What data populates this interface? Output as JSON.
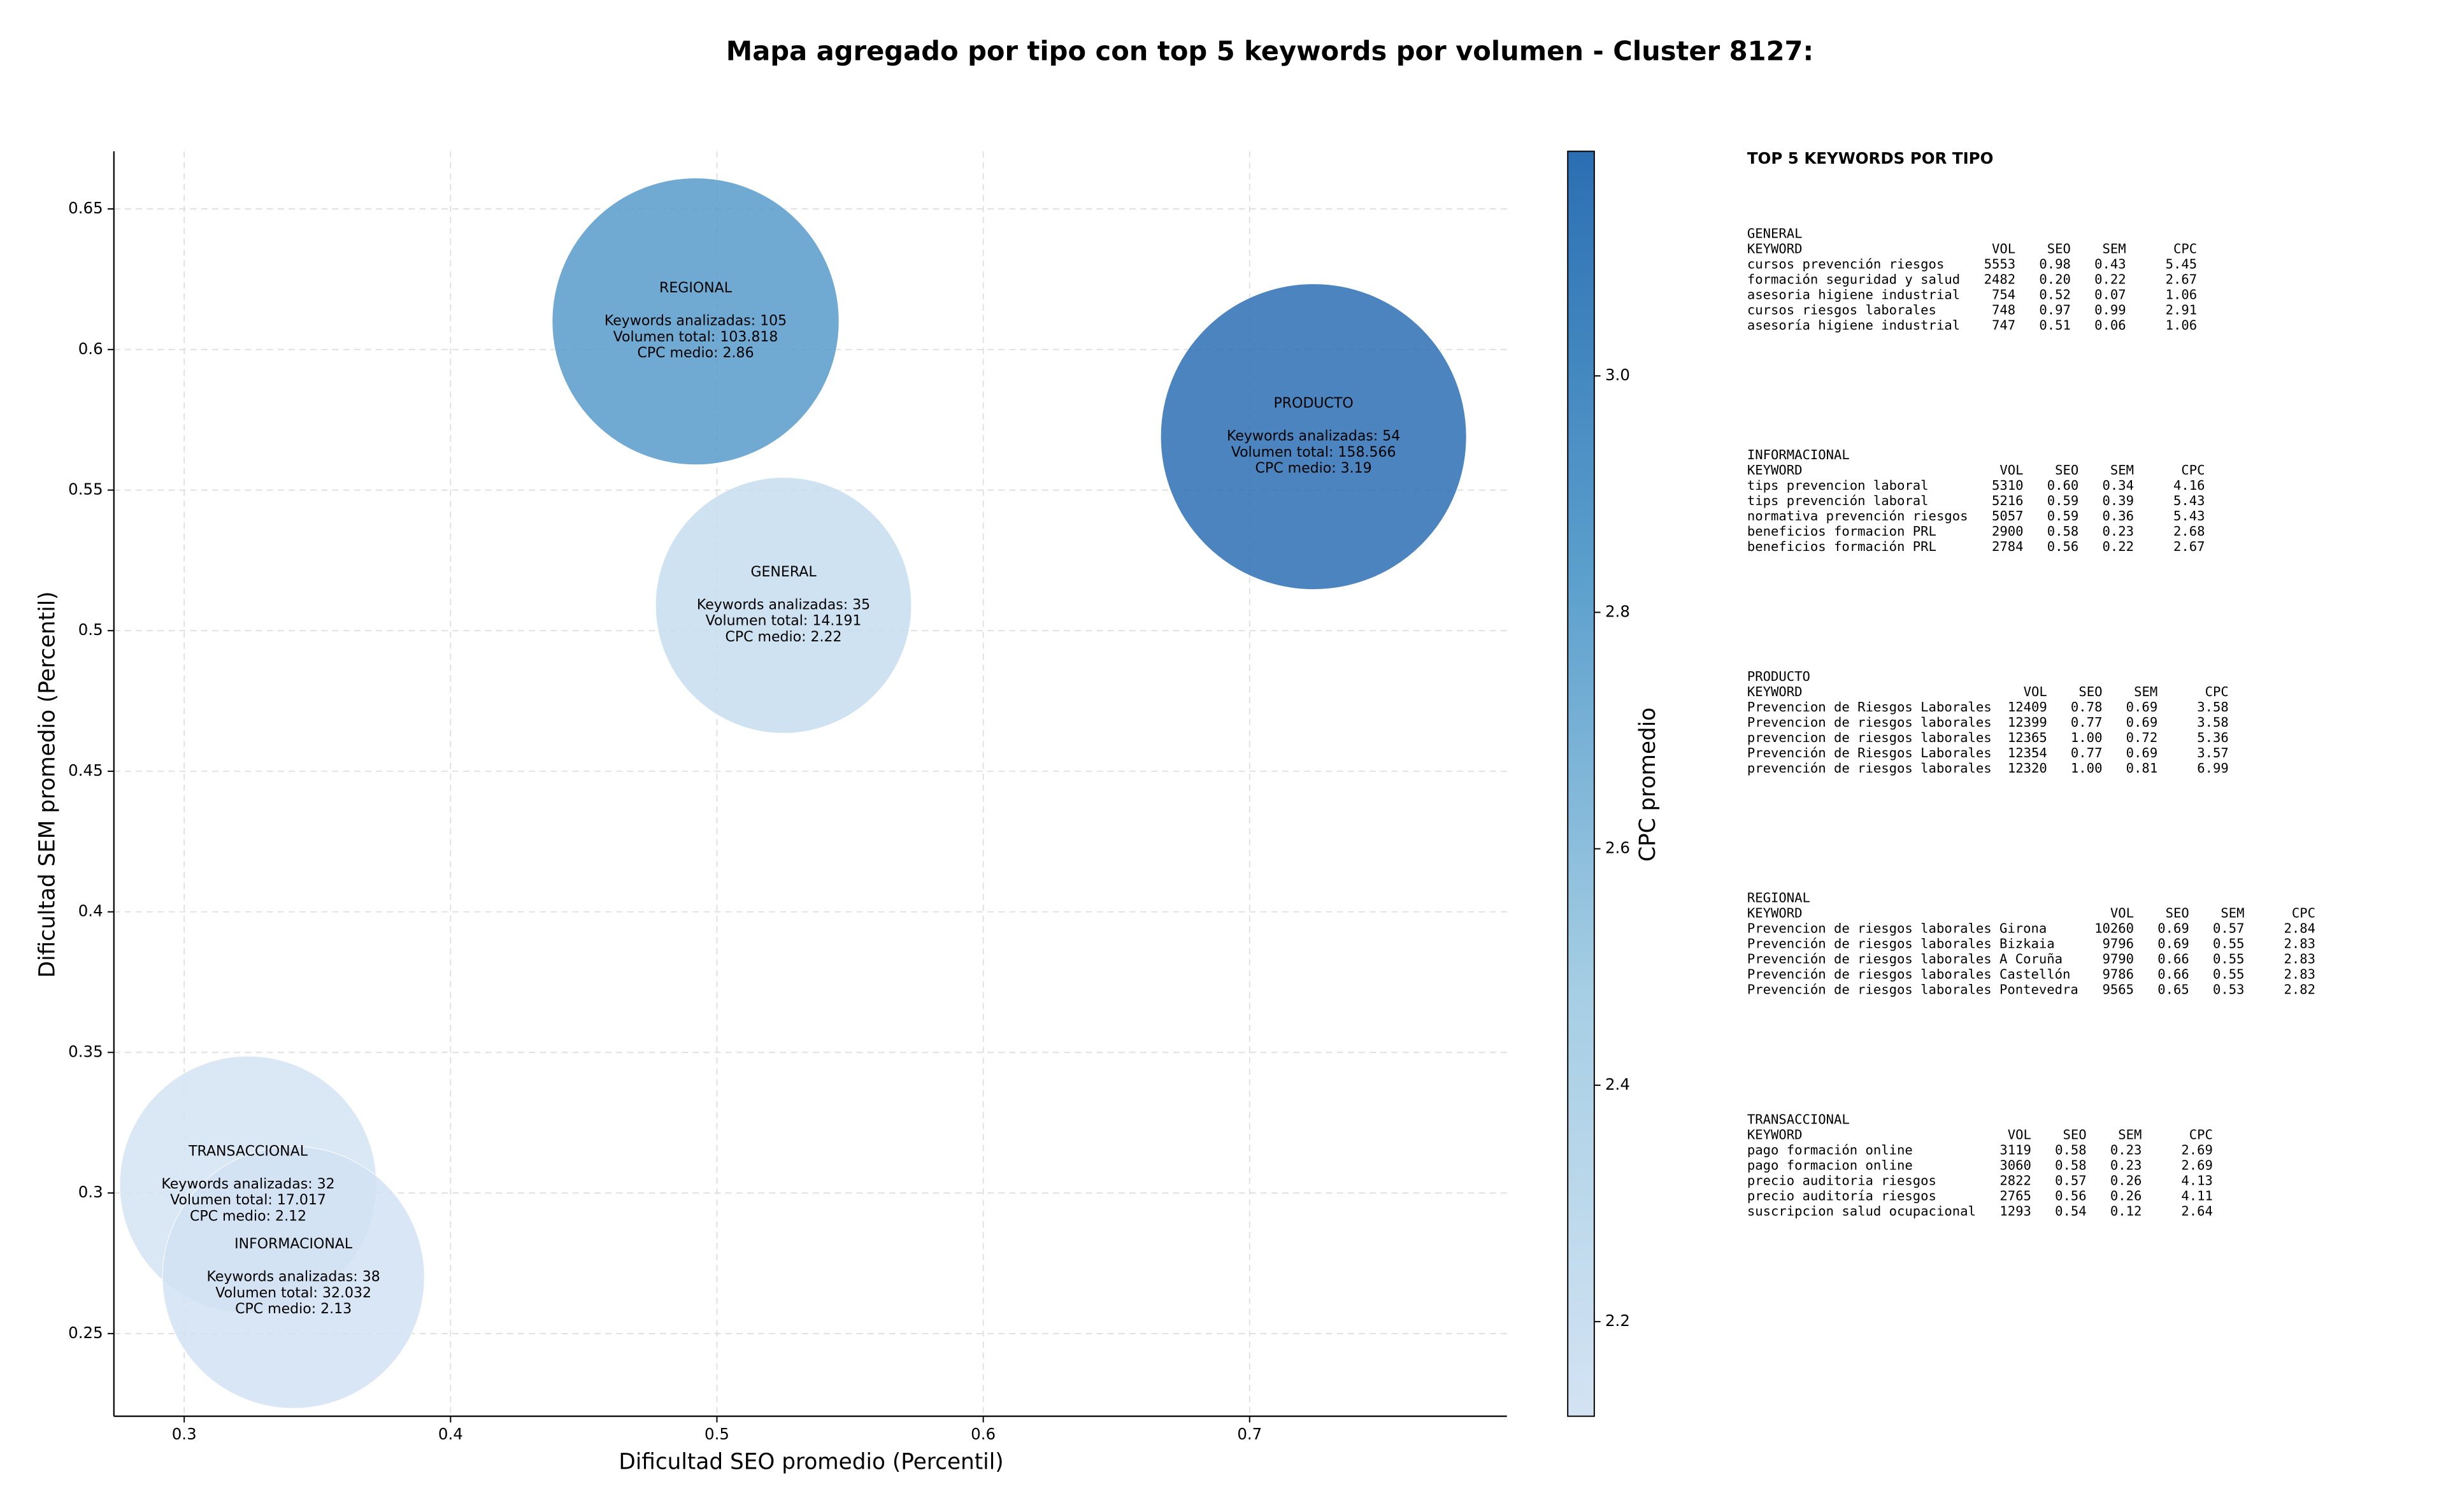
{
  "chart_data": {
    "type": "bubble",
    "title": "Mapa agregado por tipo con top 5 keywords por volumen - Cluster 8127:",
    "x_label": "Dificultad SEO promedio (Percentil)",
    "y_label": "Dificultad SEM promedio (Percentil)",
    "xlim": [
      0.2736,
      0.7966
    ],
    "xticks": [
      0.3,
      0.4,
      0.5,
      0.6,
      0.7
    ],
    "ylim": [
      0.2206,
      0.6705
    ],
    "yticks": [
      0.25,
      0.3,
      0.35,
      0.4,
      0.45,
      0.5,
      0.55,
      0.6,
      0.65
    ],
    "grid": true,
    "colorbar": {
      "label": "CPC promedio",
      "lim": [
        2.12,
        3.19
      ],
      "ticks": [
        2.2,
        2.4,
        2.6,
        2.8,
        {
          "value": 3,
          "label": "3.0"
        }
      ],
      "colormap": [
        "#d3e3f3",
        "#a6cee4",
        "#5b9fcd",
        "#2b6fb3"
      ]
    },
    "points": [
      {
        "name": "REGIONAL",
        "x": 0.492,
        "y": 0.61,
        "volume": 103818,
        "cpc": 2.86,
        "text": [
          "Keywords analizadas: 105",
          "Volumen total: 103.818",
          "CPC medio: 2.86"
        ]
      },
      {
        "name": "PRODUCTO",
        "x": 0.724,
        "y": 0.569,
        "volume": 158566,
        "cpc": 3.19,
        "text": [
          "Keywords analizadas: 54",
          "Volumen total: 158.566",
          "CPC medio: 3.19"
        ]
      },
      {
        "name": "GENERAL",
        "x": 0.525,
        "y": 0.509,
        "volume": 14191,
        "cpc": 2.22,
        "text": [
          "Keywords analizadas: 35",
          "Volumen total: 14.191",
          "CPC medio: 2.22"
        ]
      },
      {
        "name": "TRANSACCIONAL",
        "x": 0.324,
        "y": 0.303,
        "volume": 17017,
        "cpc": 2.12,
        "text": [
          "Keywords analizadas: 32",
          "Volumen total: 17.017",
          "CPC medio: 2.12"
        ]
      },
      {
        "name": "INFORMACIONAL",
        "x": 0.341,
        "y": 0.27,
        "volume": 32032,
        "cpc": 2.13,
        "text": [
          "Keywords analizadas: 38",
          "Volumen total: 32.032",
          "CPC medio: 2.13"
        ]
      }
    ]
  },
  "keyword_panel": {
    "title": "TOP 5 KEYWORDS POR TIPO",
    "columns": [
      "KEYWORD",
      "VOL",
      "SEO",
      "SEM",
      "CPC"
    ],
    "groups": [
      {
        "name": "GENERAL",
        "rows": [
          [
            "cursos prevención riesgos",
            "5553",
            "0.98",
            "0.43",
            "5.45"
          ],
          [
            "formación seguridad y salud",
            "2482",
            "0.20",
            "0.22",
            "2.67"
          ],
          [
            "asesoria higiene industrial",
            "754",
            "0.52",
            "0.07",
            "1.06"
          ],
          [
            "cursos riesgos laborales",
            "748",
            "0.97",
            "0.99",
            "2.91"
          ],
          [
            "asesoría higiene industrial",
            "747",
            "0.51",
            "0.06",
            "1.06"
          ]
        ]
      },
      {
        "name": "INFORMACIONAL",
        "rows": [
          [
            "tips prevencion laboral",
            "5310",
            "0.60",
            "0.34",
            "4.16"
          ],
          [
            "tips prevención laboral",
            "5216",
            "0.59",
            "0.39",
            "5.43"
          ],
          [
            "normativa prevención riesgos",
            "5057",
            "0.59",
            "0.36",
            "5.43"
          ],
          [
            "beneficios formacion PRL",
            "2900",
            "0.58",
            "0.23",
            "2.68"
          ],
          [
            "beneficios formación PRL",
            "2784",
            "0.56",
            "0.22",
            "2.67"
          ]
        ]
      },
      {
        "name": "PRODUCTO",
        "rows": [
          [
            "Prevencion de Riesgos Laborales",
            "12409",
            "0.78",
            "0.69",
            "3.58"
          ],
          [
            "Prevencion de riesgos laborales",
            "12399",
            "0.77",
            "0.69",
            "3.58"
          ],
          [
            "prevencion de riesgos laborales",
            "12365",
            "1.00",
            "0.72",
            "5.36"
          ],
          [
            "Prevención de Riesgos Laborales",
            "12354",
            "0.77",
            "0.69",
            "3.57"
          ],
          [
            "prevención de riesgos laborales",
            "12320",
            "1.00",
            "0.81",
            "6.99"
          ]
        ]
      },
      {
        "name": "REGIONAL",
        "rows": [
          [
            "Prevencion de riesgos laborales Girona",
            "10260",
            "0.69",
            "0.57",
            "2.84"
          ],
          [
            "Prevención de riesgos laborales Bizkaia",
            "9796",
            "0.69",
            "0.55",
            "2.83"
          ],
          [
            "Prevención de riesgos laborales A Coruña",
            "9790",
            "0.66",
            "0.55",
            "2.83"
          ],
          [
            "Prevención de riesgos laborales Castellón",
            "9786",
            "0.66",
            "0.55",
            "2.83"
          ],
          [
            "Prevención de riesgos laborales Pontevedra",
            "9565",
            "0.65",
            "0.53",
            "2.82"
          ]
        ]
      },
      {
        "name": "TRANSACCIONAL",
        "rows": [
          [
            "pago formación online",
            "3119",
            "0.58",
            "0.23",
            "2.69"
          ],
          [
            "pago formacion online",
            "3060",
            "0.58",
            "0.23",
            "2.69"
          ],
          [
            "precio auditoria riesgos",
            "2822",
            "0.57",
            "0.26",
            "4.13"
          ],
          [
            "precio auditoría riesgos",
            "2765",
            "0.56",
            "0.26",
            "4.11"
          ],
          [
            "suscripcion salud ocupacional",
            "1293",
            "0.54",
            "0.12",
            "2.64"
          ]
        ]
      }
    ]
  }
}
